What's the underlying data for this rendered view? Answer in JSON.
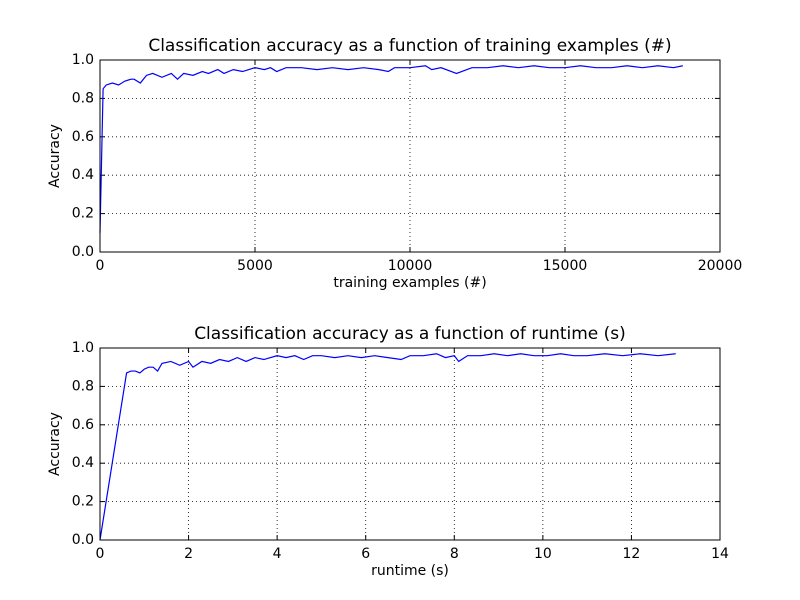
{
  "chart_data": [
    {
      "type": "line",
      "title": "Classification accuracy as a function of training examples (#)",
      "x_label": "training examples (#)",
      "y_label": "Accuracy",
      "x": [
        0,
        100,
        200,
        400,
        600,
        800,
        1000,
        1100,
        1300,
        1500,
        1700,
        2000,
        2300,
        2500,
        2700,
        3000,
        3300,
        3500,
        3800,
        4000,
        4300,
        4600,
        5000,
        5300,
        5500,
        5700,
        6000,
        6500,
        7000,
        7500,
        8000,
        8500,
        9000,
        9300,
        9500,
        10000,
        10500,
        10700,
        11000,
        11500,
        12000,
        12500,
        13000,
        13500,
        14000,
        14500,
        15000,
        15500,
        16000,
        16500,
        17000,
        17500,
        18000,
        18500,
        18800
      ],
      "series": [
        {
          "color": "#0000ff",
          "values": [
            0.1,
            0.85,
            0.87,
            0.88,
            0.87,
            0.89,
            0.9,
            0.9,
            0.88,
            0.92,
            0.93,
            0.91,
            0.93,
            0.9,
            0.93,
            0.92,
            0.94,
            0.93,
            0.95,
            0.93,
            0.95,
            0.94,
            0.96,
            0.95,
            0.96,
            0.94,
            0.96,
            0.96,
            0.95,
            0.96,
            0.95,
            0.96,
            0.95,
            0.94,
            0.96,
            0.96,
            0.97,
            0.95,
            0.96,
            0.93,
            0.96,
            0.96,
            0.97,
            0.96,
            0.97,
            0.96,
            0.96,
            0.97,
            0.96,
            0.96,
            0.97,
            0.96,
            0.97,
            0.96,
            0.97
          ]
        }
      ],
      "xlim": [
        0,
        20000
      ],
      "ylim": [
        0,
        1
      ],
      "xticks": [
        0,
        5000,
        10000,
        15000,
        20000
      ],
      "yticks": [
        {
          "value": 0,
          "label": "0.0"
        },
        0.2,
        0.4,
        0.6,
        0.8,
        {
          "value": 1,
          "label": "1.0"
        }
      ],
      "grid": true
    },
    {
      "type": "line",
      "title": "Classification accuracy as a function of runtime (s)",
      "x_label": "runtime (s)",
      "y_label": "Accuracy",
      "x": [
        0,
        0.6,
        0.7,
        0.8,
        0.9,
        1.0,
        1.1,
        1.2,
        1.3,
        1.4,
        1.6,
        1.8,
        2.0,
        2.1,
        2.3,
        2.5,
        2.7,
        2.9,
        3.1,
        3.3,
        3.5,
        3.7,
        4.0,
        4.2,
        4.4,
        4.6,
        4.8,
        5.0,
        5.3,
        5.6,
        5.9,
        6.2,
        6.5,
        6.8,
        7.0,
        7.3,
        7.6,
        7.8,
        8.0,
        8.1,
        8.3,
        8.6,
        8.9,
        9.2,
        9.5,
        9.8,
        10.1,
        10.4,
        10.7,
        11.0,
        11.4,
        11.8,
        12.2,
        12.6,
        13.0
      ],
      "series": [
        {
          "color": "#0000ff",
          "values": [
            0.0,
            0.87,
            0.88,
            0.88,
            0.87,
            0.89,
            0.9,
            0.9,
            0.88,
            0.92,
            0.93,
            0.91,
            0.93,
            0.9,
            0.93,
            0.92,
            0.94,
            0.93,
            0.95,
            0.93,
            0.95,
            0.94,
            0.96,
            0.95,
            0.96,
            0.94,
            0.96,
            0.96,
            0.95,
            0.96,
            0.95,
            0.96,
            0.95,
            0.94,
            0.96,
            0.96,
            0.97,
            0.95,
            0.96,
            0.93,
            0.96,
            0.96,
            0.97,
            0.96,
            0.97,
            0.96,
            0.96,
            0.97,
            0.96,
            0.96,
            0.97,
            0.96,
            0.97,
            0.96,
            0.97
          ]
        }
      ],
      "xlim": [
        0,
        14
      ],
      "ylim": [
        0,
        1
      ],
      "xticks": [
        0,
        2,
        4,
        6,
        8,
        10,
        12,
        14
      ],
      "yticks": [
        {
          "value": 0,
          "label": "0.0"
        },
        0.2,
        0.4,
        0.6,
        0.8,
        {
          "value": 1,
          "label": "1.0"
        }
      ],
      "grid": true
    }
  ]
}
